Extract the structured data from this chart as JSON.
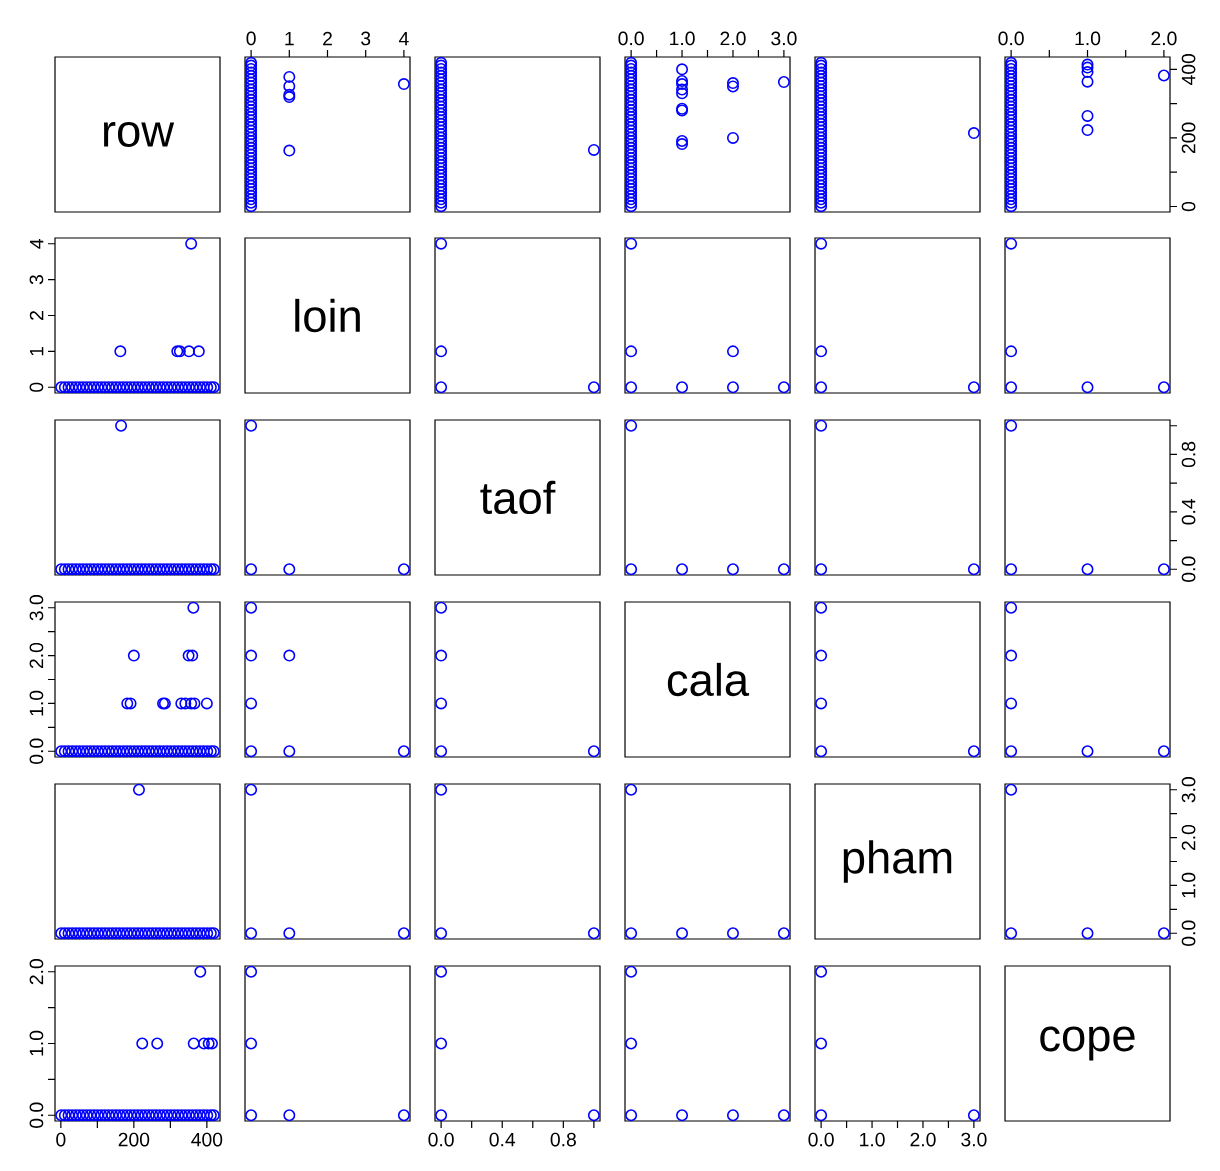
{
  "chart_data": [
    {
      "type": "other",
      "title": "row"
    },
    {
      "type": "scatter",
      "marker": "circle",
      "xlim": [
        -0.16,
        4.16
      ],
      "ylim": [
        -16,
        436
      ],
      "tick_labels": "x",
      "xticks": [
        0,
        1,
        2,
        3,
        4
      ],
      "series": [
        {
          "color": "#0000ff",
          "x": [
            0,
            0,
            0,
            0,
            0,
            0,
            0,
            0,
            0,
            0,
            0,
            0,
            0,
            0,
            0,
            0,
            0,
            0,
            0,
            0,
            0,
            0,
            0,
            0,
            0,
            0,
            0,
            0,
            0,
            0,
            0,
            0,
            0,
            0,
            0,
            0,
            0,
            0,
            0,
            0,
            0,
            0,
            0,
            1,
            1,
            1,
            1,
            4,
            1
          ],
          "values": [
            1,
            11,
            21,
            31,
            41,
            51,
            61,
            71,
            81,
            91,
            101,
            111,
            121,
            131,
            141,
            151,
            161,
            171,
            181,
            191,
            201,
            211,
            221,
            231,
            241,
            251,
            261,
            271,
            281,
            291,
            301,
            311,
            321,
            331,
            341,
            351,
            361,
            371,
            381,
            391,
            401,
            411,
            419,
            163,
            319,
            326,
            351,
            357,
            378
          ]
        }
      ]
    },
    {
      "type": "scatter",
      "marker": "circle",
      "xlim": [
        -0.04,
        1.04
      ],
      "ylim": [
        -16,
        436
      ],
      "tick_labels": false,
      "series": [
        {
          "color": "#0000ff",
          "x": [
            0,
            0,
            0,
            0,
            0,
            0,
            0,
            0,
            0,
            0,
            0,
            0,
            0,
            0,
            0,
            0,
            0,
            0,
            0,
            0,
            0,
            0,
            0,
            0,
            0,
            0,
            0,
            0,
            0,
            0,
            0,
            0,
            0,
            0,
            0,
            0,
            0,
            0,
            0,
            0,
            0,
            0,
            0,
            1
          ],
          "values": [
            1,
            11,
            21,
            31,
            41,
            51,
            61,
            71,
            81,
            91,
            101,
            111,
            121,
            131,
            141,
            151,
            161,
            171,
            181,
            191,
            201,
            211,
            221,
            231,
            241,
            251,
            261,
            271,
            281,
            291,
            301,
            311,
            321,
            331,
            341,
            351,
            361,
            371,
            381,
            391,
            401,
            411,
            419,
            165
          ]
        }
      ]
    },
    {
      "type": "scatter",
      "marker": "circle",
      "xlim": [
        -0.12,
        3.12
      ],
      "ylim": [
        -16,
        436
      ],
      "tick_labels": "x",
      "xticks": [
        {
          "value": 0,
          "label": "0.0"
        },
        {
          "value": 0.5,
          "label": null
        },
        {
          "value": 1,
          "label": "1.0"
        },
        {
          "value": 1.5,
          "label": null
        },
        {
          "value": 2,
          "label": "2.0"
        },
        {
          "value": 2.5,
          "label": null
        },
        {
          "value": 3,
          "label": "3.0"
        }
      ],
      "series": [
        {
          "color": "#0000ff",
          "x": [
            0,
            0,
            0,
            0,
            0,
            0,
            0,
            0,
            0,
            0,
            0,
            0,
            0,
            0,
            0,
            0,
            0,
            0,
            0,
            0,
            0,
            0,
            0,
            0,
            0,
            0,
            0,
            0,
            0,
            0,
            0,
            0,
            0,
            0,
            0,
            0,
            0,
            0,
            0,
            0,
            0,
            0,
            0,
            1,
            1,
            2,
            1,
            1,
            1,
            1,
            2,
            1,
            2,
            3,
            1,
            1
          ],
          "values": [
            1,
            11,
            21,
            31,
            41,
            51,
            61,
            71,
            81,
            91,
            101,
            111,
            121,
            131,
            141,
            151,
            161,
            171,
            181,
            191,
            201,
            211,
            221,
            231,
            241,
            251,
            261,
            271,
            281,
            291,
            301,
            311,
            321,
            331,
            341,
            351,
            361,
            371,
            381,
            391,
            401,
            411,
            419,
            182,
            191,
            200,
            280,
            285,
            330,
            341,
            350,
            357,
            360,
            363,
            366,
            400
          ]
        }
      ]
    },
    {
      "type": "scatter",
      "marker": "circle",
      "xlim": [
        -0.12,
        3.12
      ],
      "ylim": [
        -16,
        436
      ],
      "tick_labels": false,
      "series": [
        {
          "color": "#0000ff",
          "x": [
            0,
            0,
            0,
            0,
            0,
            0,
            0,
            0,
            0,
            0,
            0,
            0,
            0,
            0,
            0,
            0,
            0,
            0,
            0,
            0,
            0,
            0,
            0,
            0,
            0,
            0,
            0,
            0,
            0,
            0,
            0,
            0,
            0,
            0,
            0,
            0,
            0,
            0,
            0,
            0,
            0,
            0,
            0,
            3
          ],
          "values": [
            1,
            11,
            21,
            31,
            41,
            51,
            61,
            71,
            81,
            91,
            101,
            111,
            121,
            131,
            141,
            151,
            161,
            171,
            181,
            191,
            201,
            211,
            221,
            231,
            241,
            251,
            261,
            271,
            281,
            291,
            301,
            311,
            321,
            331,
            341,
            351,
            361,
            371,
            381,
            391,
            401,
            411,
            419,
            214
          ]
        }
      ]
    },
    {
      "type": "scatter",
      "marker": "circle",
      "xlim": [
        -0.08,
        2.08
      ],
      "ylim": [
        -16,
        436
      ],
      "xticks": [
        {
          "value": 0,
          "label": "0.0"
        },
        {
          "value": 0.5,
          "label": null
        },
        {
          "value": 1,
          "label": "1.0"
        },
        {
          "value": 1.5,
          "label": null
        },
        {
          "value": 2,
          "label": "2.0"
        }
      ],
      "yticks": [
        0,
        {
          "value": 100,
          "label": null
        },
        200,
        {
          "value": 300,
          "label": null
        },
        400
      ],
      "series": [
        {
          "color": "#0000ff",
          "x": [
            0,
            0,
            0,
            0,
            0,
            0,
            0,
            0,
            0,
            0,
            0,
            0,
            0,
            0,
            0,
            0,
            0,
            0,
            0,
            0,
            0,
            0,
            0,
            0,
            0,
            0,
            0,
            0,
            0,
            0,
            0,
            0,
            0,
            0,
            0,
            0,
            0,
            0,
            0,
            0,
            0,
            0,
            0,
            1,
            1,
            1,
            2,
            1,
            1,
            1
          ],
          "values": [
            1,
            11,
            21,
            31,
            41,
            51,
            61,
            71,
            81,
            91,
            101,
            111,
            121,
            131,
            141,
            151,
            161,
            171,
            181,
            191,
            201,
            211,
            221,
            231,
            241,
            251,
            261,
            271,
            281,
            291,
            301,
            311,
            321,
            331,
            341,
            351,
            361,
            371,
            381,
            391,
            401,
            411,
            419,
            223,
            264,
            364,
            382,
            392,
            405,
            414
          ]
        }
      ]
    },
    {
      "type": "scatter",
      "marker": "circle",
      "xlim": [
        -16,
        436
      ],
      "ylim": [
        -0.16,
        4.16
      ],
      "tick_labels": "y",
      "yticks": [
        0,
        1,
        2,
        3,
        4
      ],
      "series": [
        {
          "color": "#0000ff",
          "x": [
            1,
            11,
            21,
            31,
            41,
            51,
            61,
            71,
            81,
            91,
            101,
            111,
            121,
            131,
            141,
            151,
            161,
            171,
            181,
            191,
            201,
            211,
            221,
            231,
            241,
            251,
            261,
            271,
            281,
            291,
            301,
            311,
            321,
            331,
            341,
            351,
            361,
            371,
            381,
            391,
            401,
            411,
            419,
            163,
            319,
            326,
            351,
            357,
            378
          ],
          "values": [
            0,
            0,
            0,
            0,
            0,
            0,
            0,
            0,
            0,
            0,
            0,
            0,
            0,
            0,
            0,
            0,
            0,
            0,
            0,
            0,
            0,
            0,
            0,
            0,
            0,
            0,
            0,
            0,
            0,
            0,
            0,
            0,
            0,
            0,
            0,
            0,
            0,
            0,
            0,
            0,
            0,
            0,
            0,
            1,
            1,
            1,
            1,
            4,
            1
          ]
        }
      ]
    },
    {
      "type": "other",
      "title": "loin"
    },
    {
      "type": "scatter",
      "marker": "circle",
      "xlim": [
        -0.04,
        1.04
      ],
      "ylim": [
        -0.16,
        4.16
      ],
      "tick_labels": false,
      "series": [
        {
          "color": "#0000ff",
          "x": [
            0,
            0,
            0,
            1
          ],
          "values": [
            0,
            1,
            4,
            0
          ]
        }
      ]
    },
    {
      "type": "scatter",
      "marker": "circle",
      "xlim": [
        -0.12,
        3.12
      ],
      "ylim": [
        -0.16,
        4.16
      ],
      "tick_labels": false,
      "series": [
        {
          "color": "#0000ff",
          "x": [
            0,
            0,
            0,
            1,
            2,
            2,
            3
          ],
          "values": [
            0,
            1,
            4,
            0,
            0,
            1,
            0
          ]
        }
      ]
    },
    {
      "type": "scatter",
      "marker": "circle",
      "xlim": [
        -0.12,
        3.12
      ],
      "ylim": [
        -0.16,
        4.16
      ],
      "tick_labels": false,
      "series": [
        {
          "color": "#0000ff",
          "x": [
            0,
            0,
            0,
            3
          ],
          "values": [
            0,
            1,
            4,
            0
          ]
        }
      ]
    },
    {
      "type": "scatter",
      "marker": "circle",
      "xlim": [
        -0.08,
        2.08
      ],
      "ylim": [
        -0.16,
        4.16
      ],
      "tick_labels": false,
      "series": [
        {
          "color": "#0000ff",
          "x": [
            0,
            0,
            0,
            1,
            2
          ],
          "values": [
            0,
            1,
            4,
            0,
            0
          ]
        }
      ]
    },
    {
      "type": "scatter",
      "marker": "circle",
      "xlim": [
        -16,
        436
      ],
      "ylim": [
        -0.04,
        1.04
      ],
      "tick_labels": false,
      "series": [
        {
          "color": "#0000ff",
          "x": [
            1,
            11,
            21,
            31,
            41,
            51,
            61,
            71,
            81,
            91,
            101,
            111,
            121,
            131,
            141,
            151,
            161,
            171,
            181,
            191,
            201,
            211,
            221,
            231,
            241,
            251,
            261,
            271,
            281,
            291,
            301,
            311,
            321,
            331,
            341,
            351,
            361,
            371,
            381,
            391,
            401,
            411,
            419,
            165
          ],
          "values": [
            0,
            0,
            0,
            0,
            0,
            0,
            0,
            0,
            0,
            0,
            0,
            0,
            0,
            0,
            0,
            0,
            0,
            0,
            0,
            0,
            0,
            0,
            0,
            0,
            0,
            0,
            0,
            0,
            0,
            0,
            0,
            0,
            0,
            0,
            0,
            0,
            0,
            0,
            0,
            0,
            0,
            0,
            0,
            1
          ]
        }
      ]
    },
    {
      "type": "scatter",
      "marker": "circle",
      "xlim": [
        -0.16,
        4.16
      ],
      "ylim": [
        -0.04,
        1.04
      ],
      "tick_labels": false,
      "series": [
        {
          "color": "#0000ff",
          "x": [
            0,
            0,
            1,
            4
          ],
          "values": [
            0,
            1,
            0,
            0
          ]
        }
      ]
    },
    {
      "type": "other",
      "title": "taof"
    },
    {
      "type": "scatter",
      "marker": "circle",
      "xlim": [
        -0.12,
        3.12
      ],
      "ylim": [
        -0.04,
        1.04
      ],
      "tick_labels": false,
      "series": [
        {
          "color": "#0000ff",
          "x": [
            0,
            0,
            1,
            2,
            3
          ],
          "values": [
            0,
            1,
            0,
            0,
            0
          ]
        }
      ]
    },
    {
      "type": "scatter",
      "marker": "circle",
      "xlim": [
        -0.12,
        3.12
      ],
      "ylim": [
        -0.04,
        1.04
      ],
      "tick_labels": false,
      "series": [
        {
          "color": "#0000ff",
          "x": [
            0,
            0,
            3
          ],
          "values": [
            0,
            1,
            0
          ]
        }
      ]
    },
    {
      "type": "scatter",
      "marker": "circle",
      "xlim": [
        -0.08,
        2.08
      ],
      "ylim": [
        -0.04,
        1.04
      ],
      "tick_labels": "y",
      "yticks": [
        {
          "value": 0,
          "label": "0.0"
        },
        {
          "value": 0.2,
          "label": null
        },
        {
          "value": 0.4,
          "label": "0.4"
        },
        {
          "value": 0.6,
          "label": null
        },
        {
          "value": 0.8,
          "label": "0.8"
        },
        {
          "value": 1,
          "label": null
        }
      ],
      "series": [
        {
          "color": "#0000ff",
          "x": [
            0,
            0,
            1,
            2
          ],
          "values": [
            0,
            1,
            0,
            0
          ]
        }
      ]
    },
    {
      "type": "scatter",
      "marker": "circle",
      "xlim": [
        -16,
        436
      ],
      "ylim": [
        -0.12,
        3.12
      ],
      "tick_labels": "y",
      "yticks": [
        {
          "value": 0,
          "label": "0.0"
        },
        {
          "value": 0.5,
          "label": null
        },
        {
          "value": 1,
          "label": "1.0"
        },
        {
          "value": 1.5,
          "label": null
        },
        {
          "value": 2,
          "label": "2.0"
        },
        {
          "value": 2.5,
          "label": null
        },
        {
          "value": 3,
          "label": "3.0"
        }
      ],
      "series": [
        {
          "color": "#0000ff",
          "x": [
            1,
            11,
            21,
            31,
            41,
            51,
            61,
            71,
            81,
            91,
            101,
            111,
            121,
            131,
            141,
            151,
            161,
            171,
            181,
            191,
            201,
            211,
            221,
            231,
            241,
            251,
            261,
            271,
            281,
            291,
            301,
            311,
            321,
            331,
            341,
            351,
            361,
            371,
            381,
            391,
            401,
            411,
            419,
            182,
            191,
            200,
            280,
            285,
            330,
            341,
            350,
            357,
            360,
            363,
            366,
            400
          ],
          "values": [
            0,
            0,
            0,
            0,
            0,
            0,
            0,
            0,
            0,
            0,
            0,
            0,
            0,
            0,
            0,
            0,
            0,
            0,
            0,
            0,
            0,
            0,
            0,
            0,
            0,
            0,
            0,
            0,
            0,
            0,
            0,
            0,
            0,
            0,
            0,
            0,
            0,
            0,
            0,
            0,
            0,
            0,
            0,
            1,
            1,
            2,
            1,
            1,
            1,
            1,
            2,
            1,
            2,
            3,
            1,
            1
          ]
        }
      ]
    },
    {
      "type": "scatter",
      "marker": "circle",
      "xlim": [
        -0.16,
        4.16
      ],
      "ylim": [
        -0.12,
        3.12
      ],
      "tick_labels": false,
      "series": [
        {
          "color": "#0000ff",
          "x": [
            0,
            0,
            0,
            0,
            1,
            1,
            4
          ],
          "values": [
            0,
            1,
            2,
            3,
            0,
            2,
            0
          ]
        }
      ]
    },
    {
      "type": "scatter",
      "marker": "circle",
      "xlim": [
        -0.04,
        1.04
      ],
      "ylim": [
        -0.12,
        3.12
      ],
      "tick_labels": false,
      "series": [
        {
          "color": "#0000ff",
          "x": [
            0,
            0,
            0,
            0,
            1
          ],
          "values": [
            0,
            1,
            2,
            3,
            0
          ]
        }
      ]
    },
    {
      "type": "other",
      "title": "cala"
    },
    {
      "type": "scatter",
      "marker": "circle",
      "xlim": [
        -0.12,
        3.12
      ],
      "ylim": [
        -0.12,
        3.12
      ],
      "tick_labels": false,
      "series": [
        {
          "color": "#0000ff",
          "x": [
            0,
            0,
            0,
            0,
            3
          ],
          "values": [
            0,
            1,
            2,
            3,
            0
          ]
        }
      ]
    },
    {
      "type": "scatter",
      "marker": "circle",
      "xlim": [
        -0.08,
        2.08
      ],
      "ylim": [
        -0.12,
        3.12
      ],
      "tick_labels": false,
      "series": [
        {
          "color": "#0000ff",
          "x": [
            0,
            0,
            0,
            0,
            1,
            2
          ],
          "values": [
            0,
            1,
            2,
            3,
            0,
            0
          ]
        }
      ]
    },
    {
      "type": "scatter",
      "marker": "circle",
      "xlim": [
        -16,
        436
      ],
      "ylim": [
        -0.12,
        3.12
      ],
      "tick_labels": false,
      "series": [
        {
          "color": "#0000ff",
          "x": [
            1,
            11,
            21,
            31,
            41,
            51,
            61,
            71,
            81,
            91,
            101,
            111,
            121,
            131,
            141,
            151,
            161,
            171,
            181,
            191,
            201,
            211,
            221,
            231,
            241,
            251,
            261,
            271,
            281,
            291,
            301,
            311,
            321,
            331,
            341,
            351,
            361,
            371,
            381,
            391,
            401,
            411,
            419,
            214
          ],
          "values": [
            0,
            0,
            0,
            0,
            0,
            0,
            0,
            0,
            0,
            0,
            0,
            0,
            0,
            0,
            0,
            0,
            0,
            0,
            0,
            0,
            0,
            0,
            0,
            0,
            0,
            0,
            0,
            0,
            0,
            0,
            0,
            0,
            0,
            0,
            0,
            0,
            0,
            0,
            0,
            0,
            0,
            0,
            0,
            3
          ]
        }
      ]
    },
    {
      "type": "scatter",
      "marker": "circle",
      "xlim": [
        -0.16,
        4.16
      ],
      "ylim": [
        -0.12,
        3.12
      ],
      "tick_labels": false,
      "series": [
        {
          "color": "#0000ff",
          "x": [
            0,
            0,
            1,
            4
          ],
          "values": [
            0,
            3,
            0,
            0
          ]
        }
      ]
    },
    {
      "type": "scatter",
      "marker": "circle",
      "xlim": [
        -0.04,
        1.04
      ],
      "ylim": [
        -0.12,
        3.12
      ],
      "tick_labels": false,
      "series": [
        {
          "color": "#0000ff",
          "x": [
            0,
            0,
            1
          ],
          "values": [
            0,
            3,
            0
          ]
        }
      ]
    },
    {
      "type": "scatter",
      "marker": "circle",
      "xlim": [
        -0.12,
        3.12
      ],
      "ylim": [
        -0.12,
        3.12
      ],
      "tick_labels": false,
      "series": [
        {
          "color": "#0000ff",
          "x": [
            0,
            0,
            1,
            2,
            3
          ],
          "values": [
            0,
            3,
            0,
            0,
            0
          ]
        }
      ]
    },
    {
      "type": "other",
      "title": "pham"
    },
    {
      "type": "scatter",
      "marker": "circle",
      "xlim": [
        -0.08,
        2.08
      ],
      "ylim": [
        -0.12,
        3.12
      ],
      "tick_labels": "y",
      "yticks": [
        {
          "value": 0,
          "label": "0.0"
        },
        {
          "value": 0.5,
          "label": null
        },
        {
          "value": 1,
          "label": "1.0"
        },
        {
          "value": 1.5,
          "label": null
        },
        {
          "value": 2,
          "label": "2.0"
        },
        {
          "value": 2.5,
          "label": null
        },
        {
          "value": 3,
          "label": "3.0"
        }
      ],
      "series": [
        {
          "color": "#0000ff",
          "x": [
            0,
            0,
            1,
            2
          ],
          "values": [
            0,
            3,
            0,
            0
          ]
        }
      ]
    },
    {
      "type": "scatter",
      "marker": "circle",
      "xlim": [
        -16,
        436
      ],
      "ylim": [
        -0.08,
        2.08
      ],
      "xticks": [
        0,
        {
          "value": 100,
          "label": null
        },
        200,
        {
          "value": 300,
          "label": null
        },
        400
      ],
      "yticks": [
        {
          "value": 0,
          "label": "0.0"
        },
        {
          "value": 0.5,
          "label": null
        },
        {
          "value": 1,
          "label": "1.0"
        },
        {
          "value": 1.5,
          "label": null
        },
        {
          "value": 2,
          "label": "2.0"
        }
      ],
      "series": [
        {
          "color": "#0000ff",
          "x": [
            1,
            11,
            21,
            31,
            41,
            51,
            61,
            71,
            81,
            91,
            101,
            111,
            121,
            131,
            141,
            151,
            161,
            171,
            181,
            191,
            201,
            211,
            221,
            231,
            241,
            251,
            261,
            271,
            281,
            291,
            301,
            311,
            321,
            331,
            341,
            351,
            361,
            371,
            381,
            391,
            401,
            411,
            419,
            223,
            264,
            364,
            382,
            392,
            405,
            414
          ],
          "values": [
            0,
            0,
            0,
            0,
            0,
            0,
            0,
            0,
            0,
            0,
            0,
            0,
            0,
            0,
            0,
            0,
            0,
            0,
            0,
            0,
            0,
            0,
            0,
            0,
            0,
            0,
            0,
            0,
            0,
            0,
            0,
            0,
            0,
            0,
            0,
            0,
            0,
            0,
            0,
            0,
            0,
            0,
            0,
            1,
            1,
            1,
            2,
            1,
            1,
            1
          ]
        }
      ]
    },
    {
      "type": "scatter",
      "marker": "circle",
      "xlim": [
        -0.16,
        4.16
      ],
      "ylim": [
        -0.08,
        2.08
      ],
      "tick_labels": false,
      "series": [
        {
          "color": "#0000ff",
          "x": [
            0,
            0,
            0,
            1,
            4
          ],
          "values": [
            0,
            1,
            2,
            0,
            0
          ]
        }
      ]
    },
    {
      "type": "scatter",
      "marker": "circle",
      "xlim": [
        -0.04,
        1.04
      ],
      "ylim": [
        -0.08,
        2.08
      ],
      "tick_labels": "x",
      "xticks": [
        {
          "value": 0,
          "label": "0.0"
        },
        {
          "value": 0.2,
          "label": null
        },
        {
          "value": 0.4,
          "label": "0.4"
        },
        {
          "value": 0.6,
          "label": null
        },
        {
          "value": 0.8,
          "label": "0.8"
        },
        {
          "value": 1,
          "label": null
        }
      ],
      "series": [
        {
          "color": "#0000ff",
          "x": [
            0,
            0,
            0,
            1
          ],
          "values": [
            0,
            1,
            2,
            0
          ]
        }
      ]
    },
    {
      "type": "scatter",
      "marker": "circle",
      "xlim": [
        -0.12,
        3.12
      ],
      "ylim": [
        -0.08,
        2.08
      ],
      "tick_labels": false,
      "series": [
        {
          "color": "#0000ff",
          "x": [
            0,
            0,
            0,
            1,
            2,
            3
          ],
          "values": [
            0,
            1,
            2,
            0,
            0,
            0
          ]
        }
      ]
    },
    {
      "type": "scatter",
      "marker": "circle",
      "xlim": [
        -0.12,
        3.12
      ],
      "ylim": [
        -0.08,
        2.08
      ],
      "tick_labels": "x",
      "xticks": [
        {
          "value": 0,
          "label": "0.0"
        },
        {
          "value": 0.5,
          "label": null
        },
        {
          "value": 1,
          "label": "1.0"
        },
        {
          "value": 1.5,
          "label": null
        },
        {
          "value": 2,
          "label": "2.0"
        },
        {
          "value": 2.5,
          "label": null
        },
        {
          "value": 3,
          "label": "3.0"
        }
      ],
      "series": [
        {
          "color": "#0000ff",
          "x": [
            0,
            0,
            0,
            3
          ],
          "values": [
            0,
            1,
            2,
            0
          ]
        }
      ]
    },
    {
      "type": "other",
      "title": "cope"
    }
  ]
}
